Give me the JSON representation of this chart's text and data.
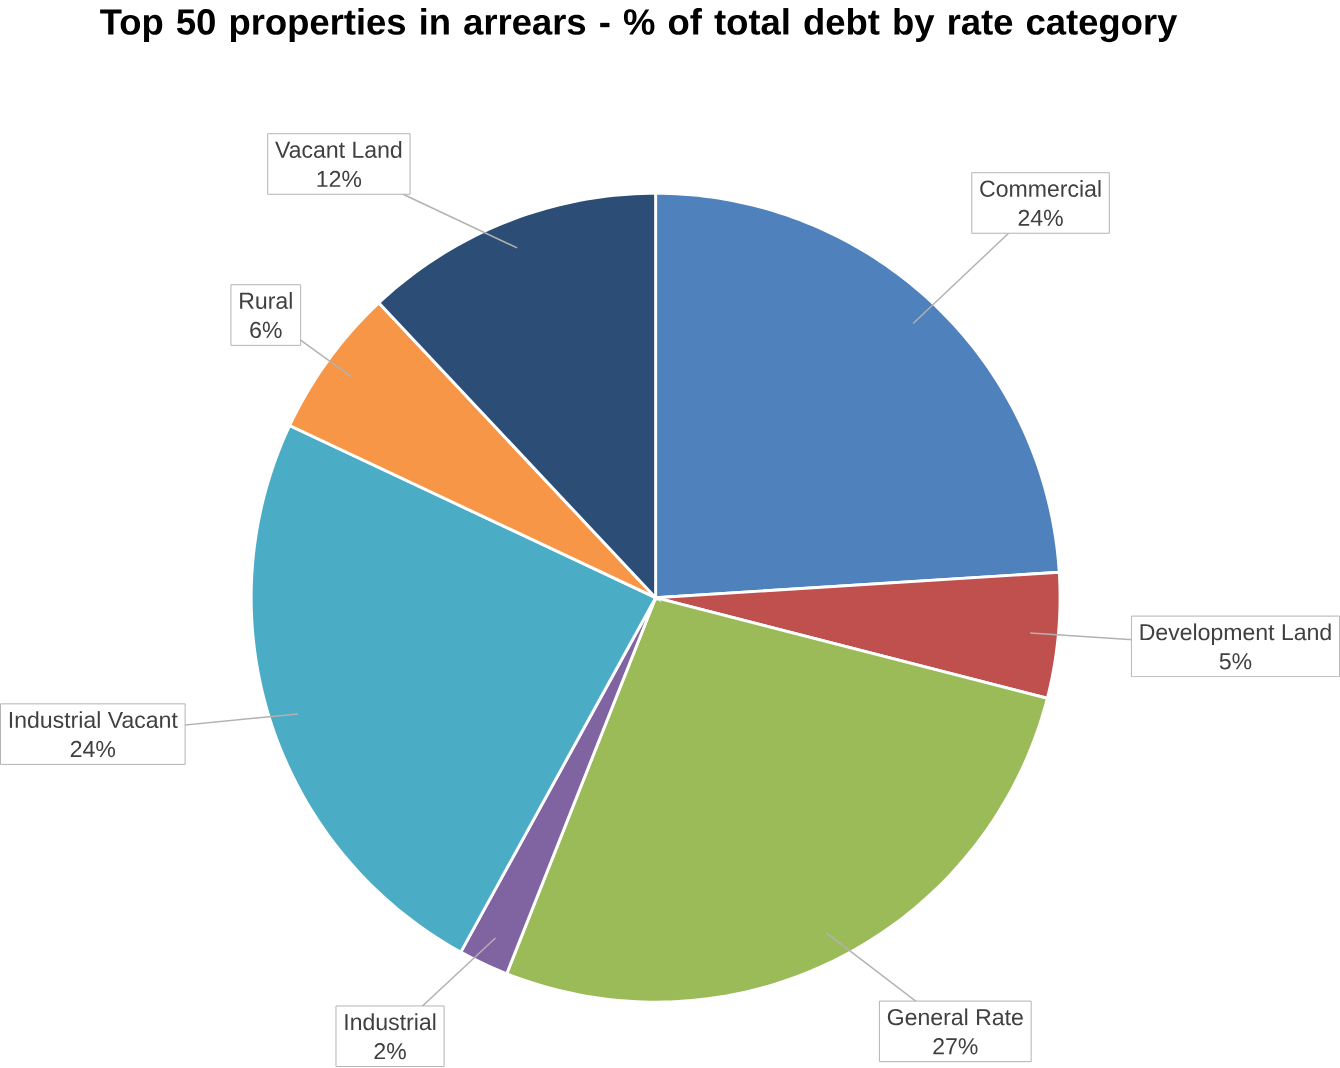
{
  "chart_data": {
    "type": "pie",
    "title": "Top 50 properties in arrears - % of total debt by rate category",
    "categories": [
      "Commercial",
      "Development Land",
      "General Rate",
      "Industrial",
      "Industrial Vacant",
      "Rural",
      "Vacant Land"
    ],
    "values": [
      24,
      5,
      27,
      2,
      24,
      6,
      12
    ],
    "value_labels": [
      "24%",
      "5%",
      "27%",
      "2%",
      "24%",
      "6%",
      "12%"
    ],
    "colors": [
      "#4f81bd",
      "#c0504d",
      "#9bbb59",
      "#8064a2",
      "#4bacc6",
      "#f79646",
      "#2c4d75"
    ]
  }
}
